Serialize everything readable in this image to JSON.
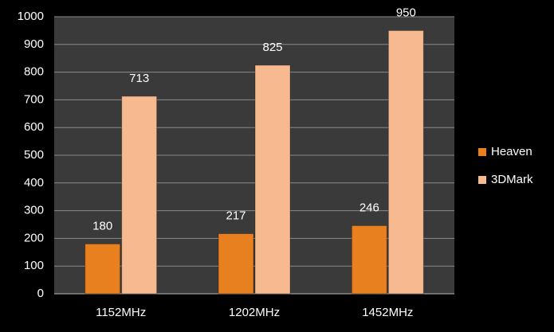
{
  "chart_data": {
    "type": "bar",
    "categories": [
      "1152MHz",
      "1202MHz",
      "1452MHz"
    ],
    "series": [
      {
        "name": "Heaven",
        "color": "#e8801f",
        "values": [
          180,
          217,
          246
        ]
      },
      {
        "name": "3DMark",
        "color": "#f7b98f",
        "values": [
          713,
          825,
          950
        ]
      }
    ],
    "ylim": [
      0,
      1000
    ],
    "yticks": [
      0,
      100,
      200,
      300,
      400,
      500,
      600,
      700,
      800,
      900,
      1000
    ],
    "grid": true,
    "legend": "right"
  }
}
